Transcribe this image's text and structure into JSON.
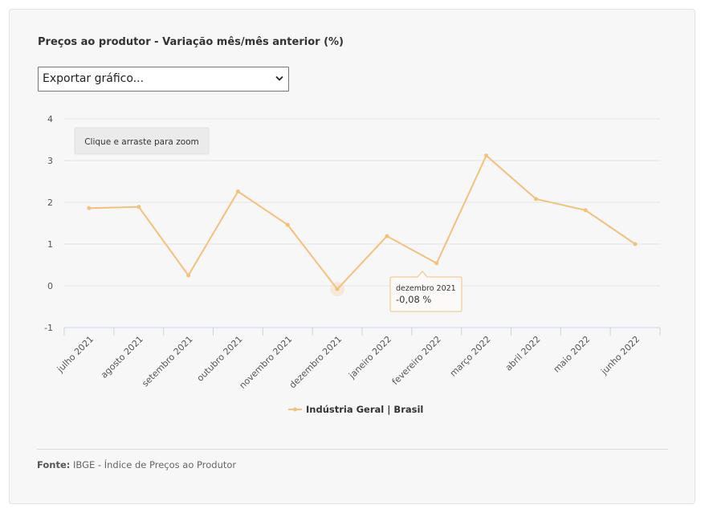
{
  "title": "Preços ao produtor - Variação mês/mês anterior (%)",
  "export": {
    "label": "Exportar gráfico..."
  },
  "zoom_hint": "Clique e arraste para zoom",
  "tooltip": {
    "category": "dezembro 2021",
    "value_text": "-0,08 %"
  },
  "footer": {
    "label": "Fonte:",
    "text": "IBGE - Índice de Preços ao Produtor"
  },
  "colors": {
    "series": "#f2c17c",
    "grid": "#e6e6e6",
    "axis": "#c8d4e6",
    "text": "#555555"
  },
  "chart_data": {
    "type": "line",
    "title": "Preços ao produtor - Variação mês/mês anterior (%)",
    "xlabel": "",
    "ylabel": "",
    "categories": [
      "julho 2021",
      "agosto 2021",
      "setembro 2021",
      "outubro 2021",
      "novembro 2021",
      "dezembro 2021",
      "janeiro 2022",
      "fevereiro 2022",
      "março 2022",
      "abril 2022",
      "maio 2022",
      "junho 2022"
    ],
    "series": [
      {
        "name": "Indústria Geral | Brasil",
        "values": [
          1.86,
          1.89,
          0.25,
          2.26,
          1.46,
          -0.08,
          1.19,
          0.54,
          3.12,
          2.08,
          1.81,
          1.0
        ]
      }
    ],
    "ylim": [
      -1,
      4
    ],
    "yticks": [
      "-1",
      "0",
      "1",
      "2",
      "3",
      "4"
    ],
    "grid": true,
    "legend": "bottom-center"
  }
}
